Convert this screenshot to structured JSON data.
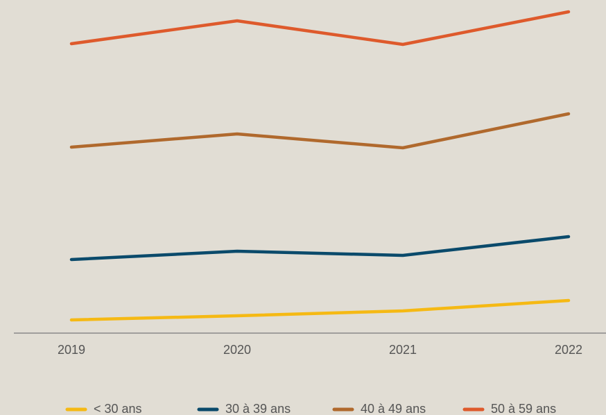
{
  "chart_data": {
    "type": "line",
    "categories": [
      "2019",
      "2020",
      "2021",
      "2022"
    ],
    "series": [
      {
        "name": "< 30 ans",
        "color": "#f5b914",
        "values": [
          19,
          25,
          32,
          47
        ]
      },
      {
        "name": "30 à 39 ans",
        "color": "#0a4a6b",
        "values": [
          106,
          118,
          112,
          139
        ]
      },
      {
        "name": "40 à 49 ans",
        "color": "#b0692d",
        "values": [
          268,
          287,
          267,
          316
        ]
      },
      {
        "name": "50 à 59 ans",
        "color": "#de5a2c",
        "values": [
          417,
          450,
          416,
          463
        ]
      }
    ],
    "ylim": [
      0,
      480
    ],
    "legend": "bottom"
  }
}
